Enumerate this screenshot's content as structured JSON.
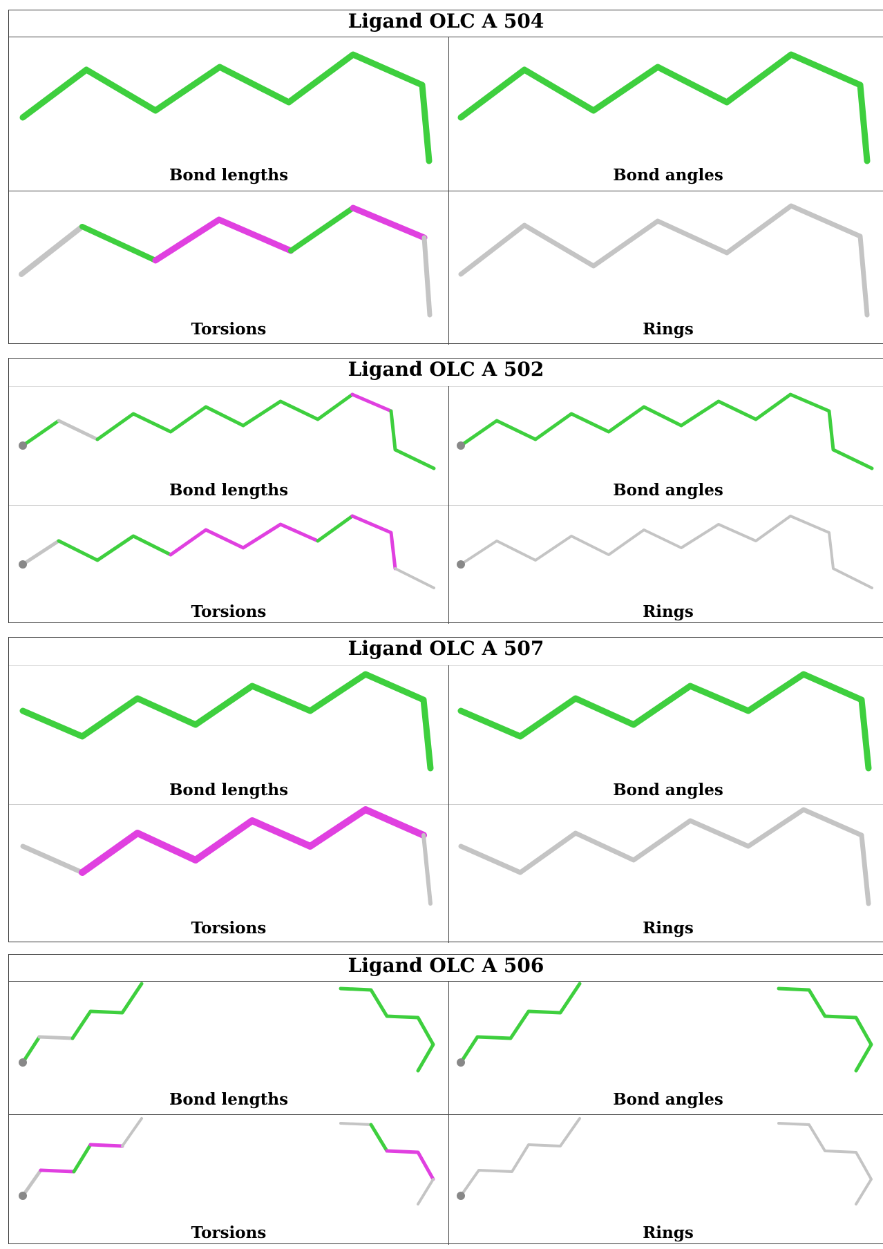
{
  "colors": {
    "pass": "#3ecf3e",
    "fail": "#e040e0",
    "none": "#c4c4c4",
    "atom": "#888888"
  },
  "ligands": [
    {
      "title": "Ligand OLC A 504",
      "panels": [
        {
          "label": "Bond lengths",
          "icon": "green-chain-icon"
        },
        {
          "label": "Bond angles",
          "icon": "green-chain-icon"
        },
        {
          "label": "Torsions",
          "icon": "mixed-chain-icon"
        },
        {
          "label": "Rings",
          "icon": "grey-chain-icon"
        }
      ]
    },
    {
      "title": "Ligand OLC A 502",
      "panels": [
        {
          "label": "Bond lengths",
          "icon": "mixed-chain-icon"
        },
        {
          "label": "Bond angles",
          "icon": "green-chain-icon"
        },
        {
          "label": "Torsions",
          "icon": "mixed-chain-icon"
        },
        {
          "label": "Rings",
          "icon": "grey-chain-icon"
        }
      ]
    },
    {
      "title": "Ligand OLC A 507",
      "panels": [
        {
          "label": "Bond lengths",
          "icon": "green-chain-icon"
        },
        {
          "label": "Bond angles",
          "icon": "green-chain-icon"
        },
        {
          "label": "Torsions",
          "icon": "mixed-chain-icon"
        },
        {
          "label": "Rings",
          "icon": "grey-chain-icon"
        }
      ]
    },
    {
      "title": "Ligand OLC A 506",
      "panels": [
        {
          "label": "Bond lengths",
          "icon": "mixed-chain-icon"
        },
        {
          "label": "Bond angles",
          "icon": "green-chain-icon"
        },
        {
          "label": "Torsions",
          "icon": "mixed-chain-icon"
        },
        {
          "label": "Rings",
          "icon": "grey-chain-icon"
        }
      ]
    }
  ]
}
